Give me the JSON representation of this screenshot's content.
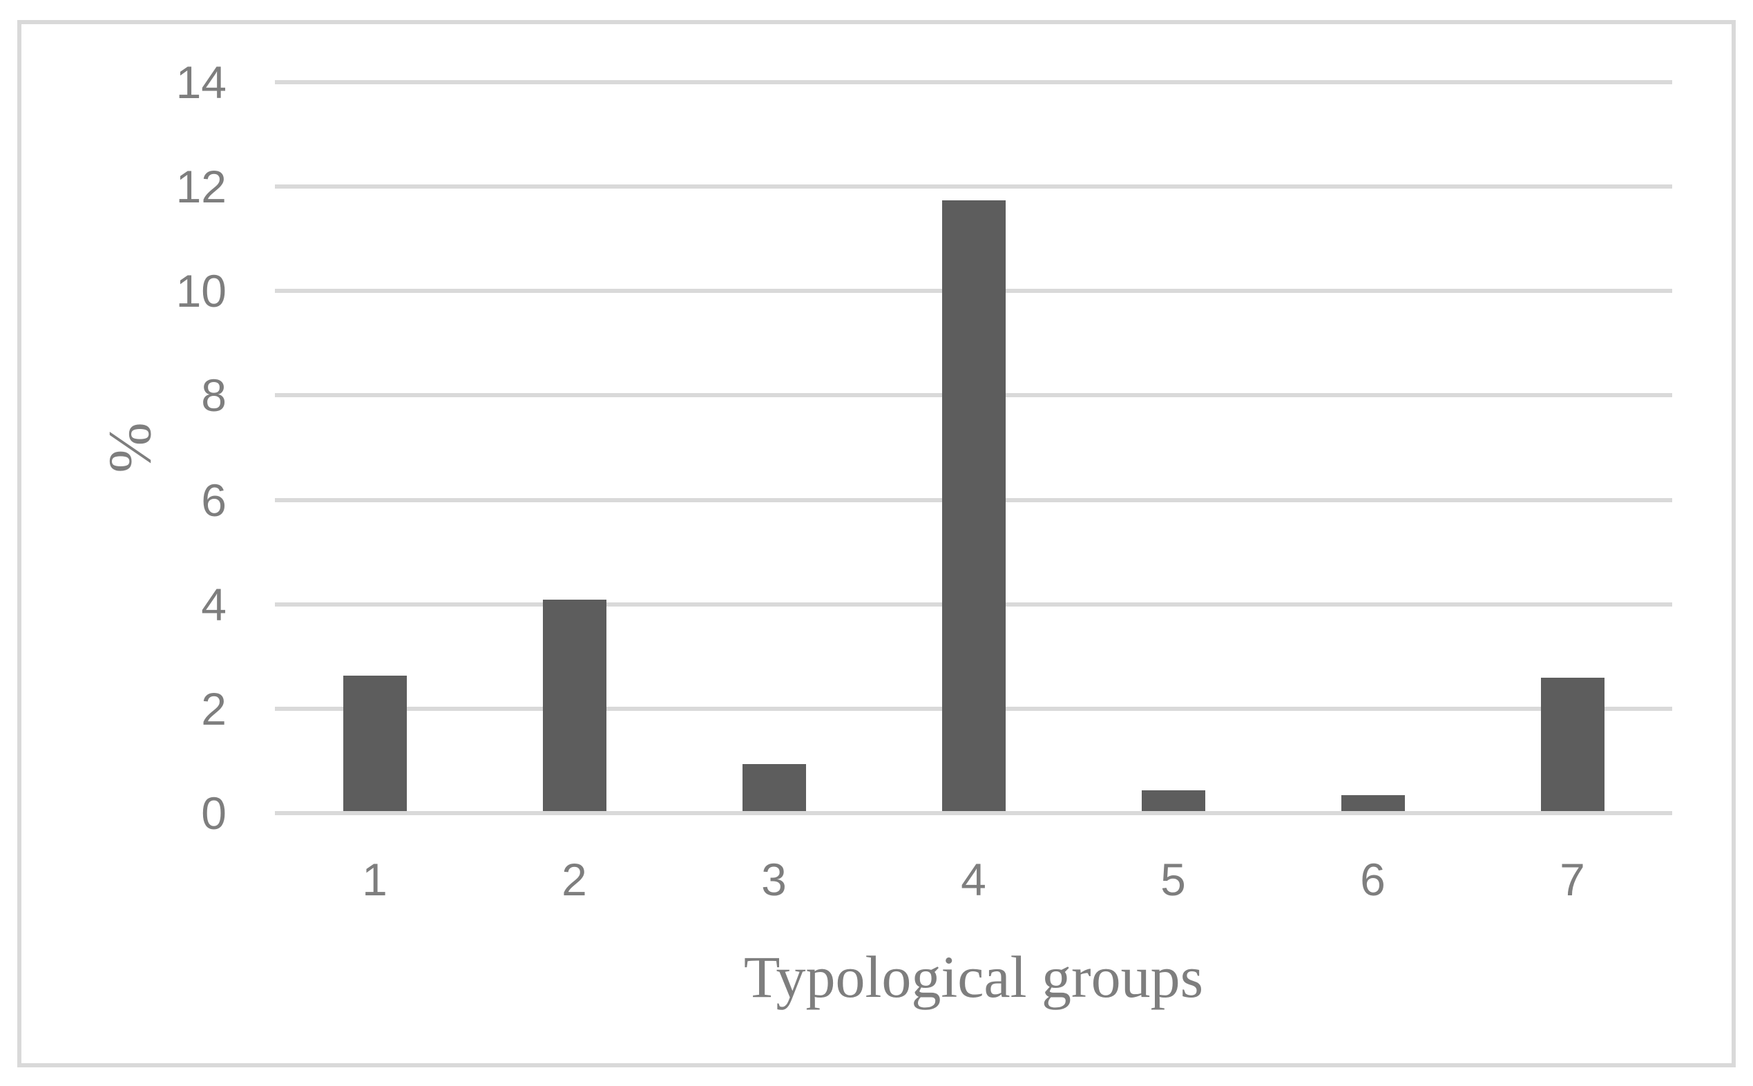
{
  "chart_data": {
    "type": "bar",
    "title": "",
    "xlabel": "Typological groups",
    "ylabel": "%",
    "categories": [
      "1",
      "2",
      "3",
      "4",
      "5",
      "6",
      "7"
    ],
    "values": [
      2.6,
      4.05,
      0.9,
      11.7,
      0.4,
      0.3,
      2.55
    ],
    "ylim": [
      0,
      14
    ],
    "yticks": [
      0,
      2,
      4,
      6,
      8,
      10,
      12,
      14
    ],
    "grid": true,
    "legend_position": "none",
    "colors": {
      "bar": "#5d5d5d",
      "gridline": "#d9d9d9",
      "border": "#d9d9d9",
      "text": "#7e7e7e",
      "background": "#ffffff"
    }
  }
}
